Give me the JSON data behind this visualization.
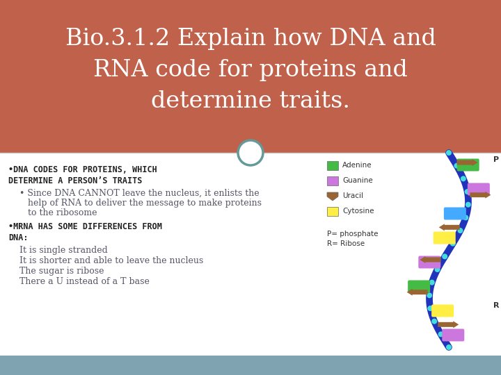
{
  "title_line1": "Bio.3.1.2 Explain how DNA and",
  "title_line2": "RNA code for proteins and",
  "title_line3": "determine traits.",
  "title_bg_color": "#C0624B",
  "title_text_color": "#FFFFFF",
  "body_bg_color": "#FFFFFF",
  "footer_bg_color": "#7FA3B0",
  "body_text_color": "#555566",
  "bullet1_line1": "•DNA CODES FOR PROTEINS, WHICH",
  "bullet1_line2": "DETERMINE A PERSON’S TRAITS",
  "bullet1_sub": "Since DNA CANNOT leave the nucleus, it enlists the\nhelp of RNA to deliver the message to make proteins\nto the ribosome",
  "bullet2_line1": "•MRNA HAS SOME DIFFERENCES FROM",
  "bullet2_line2": "DNA:",
  "bullet2_items": [
    "It is single stranded",
    "It is shorter and able to leave the nucleus",
    "The sugar is ribose",
    "There a U instead of a T base"
  ],
  "legend_items": [
    {
      "label": "Adenine",
      "color": "#44BB44"
    },
    {
      "label": "Guanine",
      "color": "#CC77DD"
    },
    {
      "label": "Uracil",
      "color": "#996633"
    },
    {
      "label": "Cytosine",
      "color": "#FFEE44"
    }
  ],
  "legend_note1": "P= phosphate",
  "legend_note2": "R= Ribose",
  "circle_edge_color": "#669999",
  "circle_face_color": "#FFFFFF",
  "helix_backbone_color": "#2233BB",
  "helix_node_color": "#44AAFF",
  "helix_brown_color": "#996633",
  "helix_colors": [
    "#44BB44",
    "#CC77DD",
    "#44AAFF",
    "#FFEE44",
    "#CC77DD",
    "#44BB44",
    "#FFEE44",
    "#CC77DD"
  ]
}
